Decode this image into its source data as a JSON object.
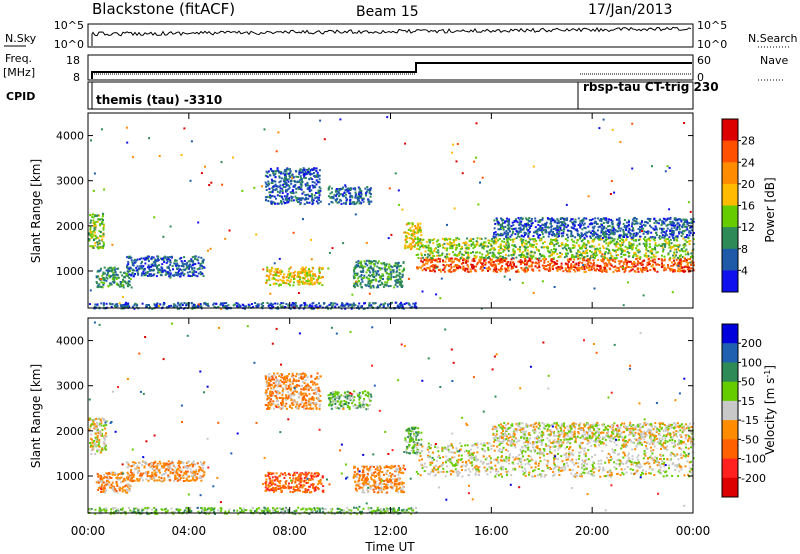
{
  "header": {
    "station": "Blackstone (fitACF)",
    "beam": "Beam 15",
    "date": "17/Jan/2013"
  },
  "sky_panel": {
    "left_label": "N.Sky",
    "right_label": "N.Search",
    "ticks": [
      "10^5",
      "10^0"
    ]
  },
  "freq_panel": {
    "left_label_1": "Freq.",
    "left_label_2": "[MHz]",
    "left_ticks": [
      "18",
      "8"
    ],
    "right_label": "Nave",
    "right_ticks": [
      "60",
      "0"
    ]
  },
  "cpid_panel": {
    "label": "CPID",
    "text_1": "themis (tau) -3310",
    "text_2": "rbsp-tau CT-trig 230"
  },
  "x_axis": {
    "label": "Time UT",
    "ticks": [
      "00:00",
      "04:00",
      "08:00",
      "12:00",
      "16:00",
      "20:00",
      "00:00"
    ]
  },
  "chart_data": [
    {
      "type": "heatmap",
      "name": "power",
      "ylabel": "Slant Range [km]",
      "yticks": [
        1000,
        2000,
        3000,
        4000
      ],
      "ylim": [
        180,
        4500
      ],
      "xlim": [
        0,
        24
      ],
      "colorbar": {
        "label": "Power [dB]",
        "ticks": [
          "28",
          "24",
          "20",
          "16",
          "12",
          "8",
          "4"
        ],
        "colors": [
          "#dd0000",
          "#ff5000",
          "#ff8c00",
          "#ffbb00",
          "#66cc00",
          "#2e8b57",
          "#1e5aa8",
          "#1010ee"
        ]
      },
      "regions": [
        {
          "t": [
            0.0,
            0.6
          ],
          "r": [
            1500,
            2300
          ],
          "level": 4
        },
        {
          "t": [
            0.3,
            1.7
          ],
          "r": [
            650,
            1100
          ],
          "level": 5
        },
        {
          "t": [
            1.5,
            4.6
          ],
          "r": [
            900,
            1350
          ],
          "level": 6
        },
        {
          "t": [
            0.0,
            13.0
          ],
          "r": [
            180,
            320
          ],
          "level": 6
        },
        {
          "t": [
            7.0,
            9.3
          ],
          "r": [
            700,
            1100
          ],
          "level": 3
        },
        {
          "t": [
            7.0,
            9.2
          ],
          "r": [
            2500,
            3300
          ],
          "level": 6
        },
        {
          "t": [
            9.5,
            11.2
          ],
          "r": [
            2500,
            2900
          ],
          "level": 6
        },
        {
          "t": [
            10.5,
            12.5
          ],
          "r": [
            650,
            1250
          ],
          "level": 5
        },
        {
          "t": [
            12.5,
            13.2
          ],
          "r": [
            1500,
            2100
          ],
          "level": 3
        },
        {
          "t": [
            13.0,
            24.0
          ],
          "r": [
            1000,
            1300
          ],
          "level": 1
        },
        {
          "t": [
            13.0,
            24.0
          ],
          "r": [
            1300,
            1750
          ],
          "level": 4
        },
        {
          "t": [
            16.0,
            24.0
          ],
          "r": [
            1750,
            2200
          ],
          "level": 6
        }
      ]
    },
    {
      "type": "heatmap",
      "name": "velocity",
      "ylabel": "Slant Range [km]",
      "yticks": [
        1000,
        2000,
        3000,
        4000
      ],
      "ylim": [
        180,
        4500
      ],
      "xlim": [
        0,
        24
      ],
      "colorbar": {
        "label": "Velocity [m s^-1]",
        "ticks": [
          "200",
          "100",
          "50",
          "15",
          "-15",
          "-50",
          "-100",
          "-200"
        ],
        "colors": [
          "#0000dd",
          "#2060b0",
          "#2e8b57",
          "#66cc00",
          "#c8c8c8",
          "#ff8c00",
          "#ff6000",
          "#ff2020",
          "#dd0000"
        ]
      },
      "regions": [
        {
          "t": [
            0.0,
            0.7
          ],
          "r": [
            1500,
            2300
          ],
          "level": 4
        },
        {
          "t": [
            0.3,
            1.8
          ],
          "r": [
            650,
            1100
          ],
          "level": 5
        },
        {
          "t": [
            1.5,
            4.6
          ],
          "r": [
            900,
            1350
          ],
          "level": 5
        },
        {
          "t": [
            0.0,
            13.0
          ],
          "r": [
            180,
            320
          ],
          "level": 3
        },
        {
          "t": [
            7.0,
            9.3
          ],
          "r": [
            650,
            1100
          ],
          "level": 6
        },
        {
          "t": [
            7.0,
            9.2
          ],
          "r": [
            2500,
            3300
          ],
          "level": 5
        },
        {
          "t": [
            9.5,
            11.2
          ],
          "r": [
            2500,
            2900
          ],
          "level": 3
        },
        {
          "t": [
            10.5,
            12.5
          ],
          "r": [
            650,
            1250
          ],
          "level": 5
        },
        {
          "t": [
            12.5,
            13.2
          ],
          "r": [
            1500,
            2100
          ],
          "level": 3
        },
        {
          "t": [
            13.0,
            24.0
          ],
          "r": [
            1000,
            1750
          ],
          "level": 4
        },
        {
          "t": [
            16.0,
            24.0
          ],
          "r": [
            1750,
            2200
          ],
          "level": 4
        }
      ]
    }
  ]
}
